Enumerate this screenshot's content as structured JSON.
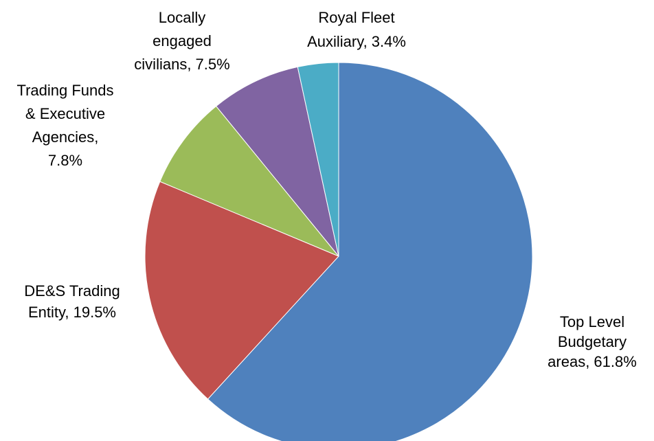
{
  "chart_data": {
    "type": "pie",
    "categories": [
      "Top Level Budgetary areas",
      "DE&S Trading Entity",
      "Trading Funds & Executive Agencies",
      "Locally engaged civilians",
      "Royal Fleet Auxiliary"
    ],
    "values": [
      61.8,
      19.5,
      7.8,
      7.5,
      3.4
    ],
    "value_labels": [
      "61.8%",
      "19.5%",
      "7.8%",
      "7.5%",
      "3.4%"
    ],
    "labels": [
      [
        "Top Level",
        "Budgetary",
        "areas, 61.8%"
      ],
      [
        "DE&S Trading",
        "Entity, 19.5%"
      ],
      [
        "Trading Funds",
        "& Executive",
        "Agencies,",
        "7.8%"
      ],
      [
        "Locally",
        "engaged",
        "civilians, 7.5%"
      ],
      [
        "Royal Fleet",
        "Auxiliary, 3.4%"
      ]
    ],
    "colors": [
      "#4f81bd",
      "#c0504d",
      "#9bbb59",
      "#8064a2",
      "#4bacc6"
    ]
  }
}
